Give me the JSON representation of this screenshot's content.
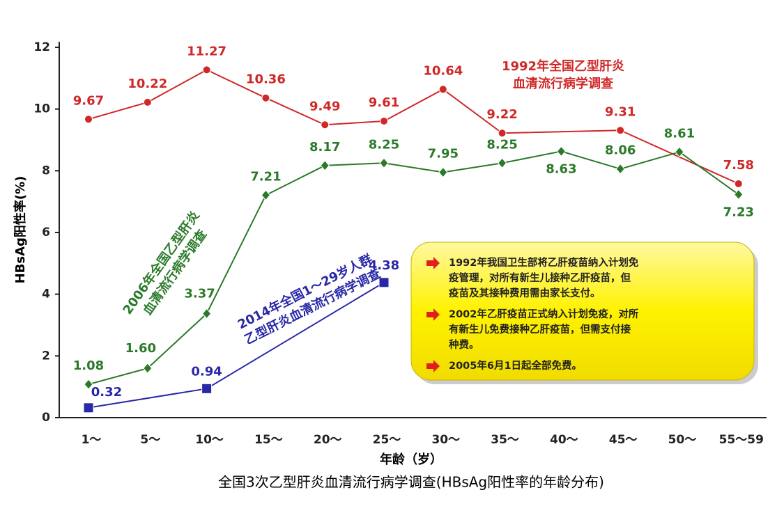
{
  "chart_data": {
    "type": "line",
    "y_label": "HBsAg阳性率(%)",
    "x_label": "年龄（岁）",
    "caption": "全国3次乙型肝炎血清流行病学调查(HBsAg阳性率的年龄分布)",
    "categories": [
      "1～",
      "5～",
      "10～",
      "15～",
      "20～",
      "25～",
      "30～",
      "35～",
      "40～",
      "45～",
      "50～",
      "55～59"
    ],
    "ylim": [
      0,
      12
    ],
    "yticks": [
      0,
      2,
      4,
      6,
      8,
      10,
      12
    ],
    "series": [
      {
        "name": [
          "1992年全国乙型肝炎",
          "血清流行病学调查"
        ],
        "color": "#d02828",
        "marker": "circle",
        "x": [
          "1～",
          "5～",
          "10～",
          "15～",
          "20～",
          "25～",
          "30～",
          "35～",
          "45～",
          "55～59"
        ],
        "values": [
          9.67,
          10.22,
          11.27,
          10.36,
          9.49,
          9.61,
          10.64,
          9.22,
          9.31,
          7.58
        ]
      },
      {
        "name": [
          "2006年全国乙型肝炎",
          "血清流行病学调查"
        ],
        "color": "#2a7a2a",
        "marker": "diamond",
        "x": [
          "1～",
          "5～",
          "10～",
          "15～",
          "20～",
          "25～",
          "30～",
          "35～",
          "40～",
          "45～",
          "50～",
          "55～59"
        ],
        "values": [
          1.08,
          1.6,
          3.37,
          7.21,
          8.17,
          8.25,
          7.95,
          8.25,
          8.63,
          8.06,
          8.61,
          7.23
        ],
        "value_labels": [
          "1.08",
          "1.60",
          "3.37",
          "7.21",
          "8.17",
          "8.25",
          "7.95",
          "8.25",
          "8.63",
          "8.06",
          "8.61",
          "7.23"
        ]
      },
      {
        "name": [
          "2014年全国1～29岁人群",
          "乙型肝炎血清流行病学调查"
        ],
        "color": "#2828a8",
        "marker": "square",
        "x": [
          "1～",
          "10～",
          "25～"
        ],
        "values": [
          0.32,
          0.94,
          4.38
        ]
      }
    ],
    "notes": [
      [
        "1992年我国卫生部将乙肝疫苗纳入计划免",
        "疫管理，对所有新生儿接种乙肝疫苗，但",
        "疫苗及其接种费用需由家长支付。"
      ],
      [
        "2002年乙肝疫苗正式纳入计划免疫，对所",
        "有新生儿免费接种乙肝疫苗，但需支付接",
        "种费。"
      ],
      [
        "2005年6月1日起全部免费。"
      ]
    ]
  }
}
